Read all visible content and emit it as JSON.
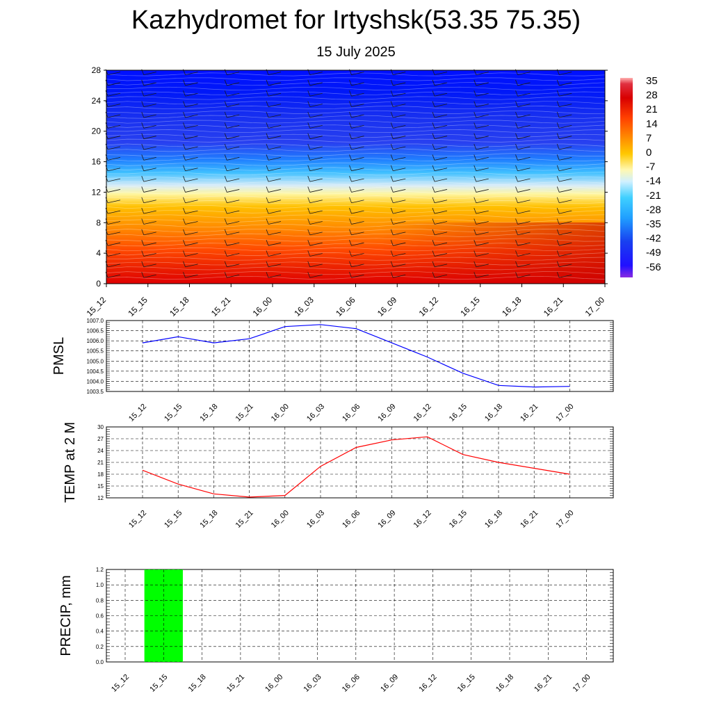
{
  "header": {
    "title": "Kazhydromet for Irtyshsk(53.35 75.35)",
    "subtitle": "15 July 2025"
  },
  "chart_data": [
    {
      "type": "heatmap",
      "title": "",
      "x_labels": [
        "15_12",
        "15_15",
        "15_18",
        "15_21",
        "16_00",
        "16_03",
        "16_06",
        "16_09",
        "16_12",
        "16_15",
        "16_18",
        "16_21",
        "17_00"
      ],
      "y_ticks": [
        "0",
        "4",
        "8",
        "12",
        "16",
        "20",
        "24",
        "28"
      ],
      "ylim": [
        0,
        28
      ],
      "colorbar_labels": [
        "35",
        "28",
        "21",
        "14",
        "7",
        "0",
        "-7",
        "-14",
        "-21",
        "-28",
        "-35",
        "-42",
        "-49",
        "-56"
      ],
      "color_range": [
        -60,
        38
      ],
      "wind_barbs": true,
      "description_levels": "temperature by level; warm (red) near 0-4, yellow near 12, blue above 16"
    },
    {
      "type": "line",
      "ylabel": "PMSL",
      "ylim": [
        1003.5,
        1007.0
      ],
      "y_ticks": [
        "1003.5",
        "1004.0",
        "1004.5",
        "1005.0",
        "1005.5",
        "1006.0",
        "1006.5",
        "1007.0"
      ],
      "x_labels": [
        "15_12",
        "15_15",
        "15_18",
        "15_21",
        "16_00",
        "16_03",
        "16_06",
        "16_09",
        "16_12",
        "16_15",
        "16_18",
        "16_21",
        "17_00"
      ],
      "values": [
        1005.9,
        1006.2,
        1005.9,
        1006.1,
        1006.7,
        1006.8,
        1006.6,
        1005.9,
        1005.2,
        1004.4,
        1003.8,
        1003.72,
        1003.75
      ],
      "color": "#0000ff",
      "grid": true
    },
    {
      "type": "line",
      "ylabel": "TEMP at 2 M",
      "ylim": [
        12,
        30
      ],
      "y_ticks": [
        "12",
        "15",
        "18",
        "21",
        "24",
        "27",
        "30"
      ],
      "x_labels": [
        "15_12",
        "15_15",
        "15_18",
        "15_21",
        "16_00",
        "16_03",
        "16_06",
        "16_09",
        "16_12",
        "16_15",
        "16_18",
        "16_21",
        "17_00"
      ],
      "values": [
        19.0,
        15.5,
        13.0,
        12.2,
        12.6,
        20.0,
        24.8,
        26.7,
        27.5,
        23.0,
        21.0,
        19.5,
        18.0
      ],
      "color": "#ff0000",
      "grid": true
    },
    {
      "type": "bar",
      "ylabel": "PRECIP, mm",
      "ylim": [
        0,
        1.2
      ],
      "y_ticks": [
        "0.0",
        "0.2",
        "0.4",
        "0.6",
        "0.8",
        "1.0",
        "1.2"
      ],
      "categories": [
        "15_12",
        "15_15",
        "15_18",
        "15_21",
        "16_00",
        "16_03",
        "16_06",
        "16_09",
        "16_12",
        "16_15",
        "16_18",
        "16_21",
        "17_00"
      ],
      "values": [
        0,
        1.2,
        0,
        0,
        0,
        0,
        0,
        0,
        0,
        0,
        0,
        0,
        0
      ],
      "color": "#00ff00",
      "grid": true
    }
  ]
}
